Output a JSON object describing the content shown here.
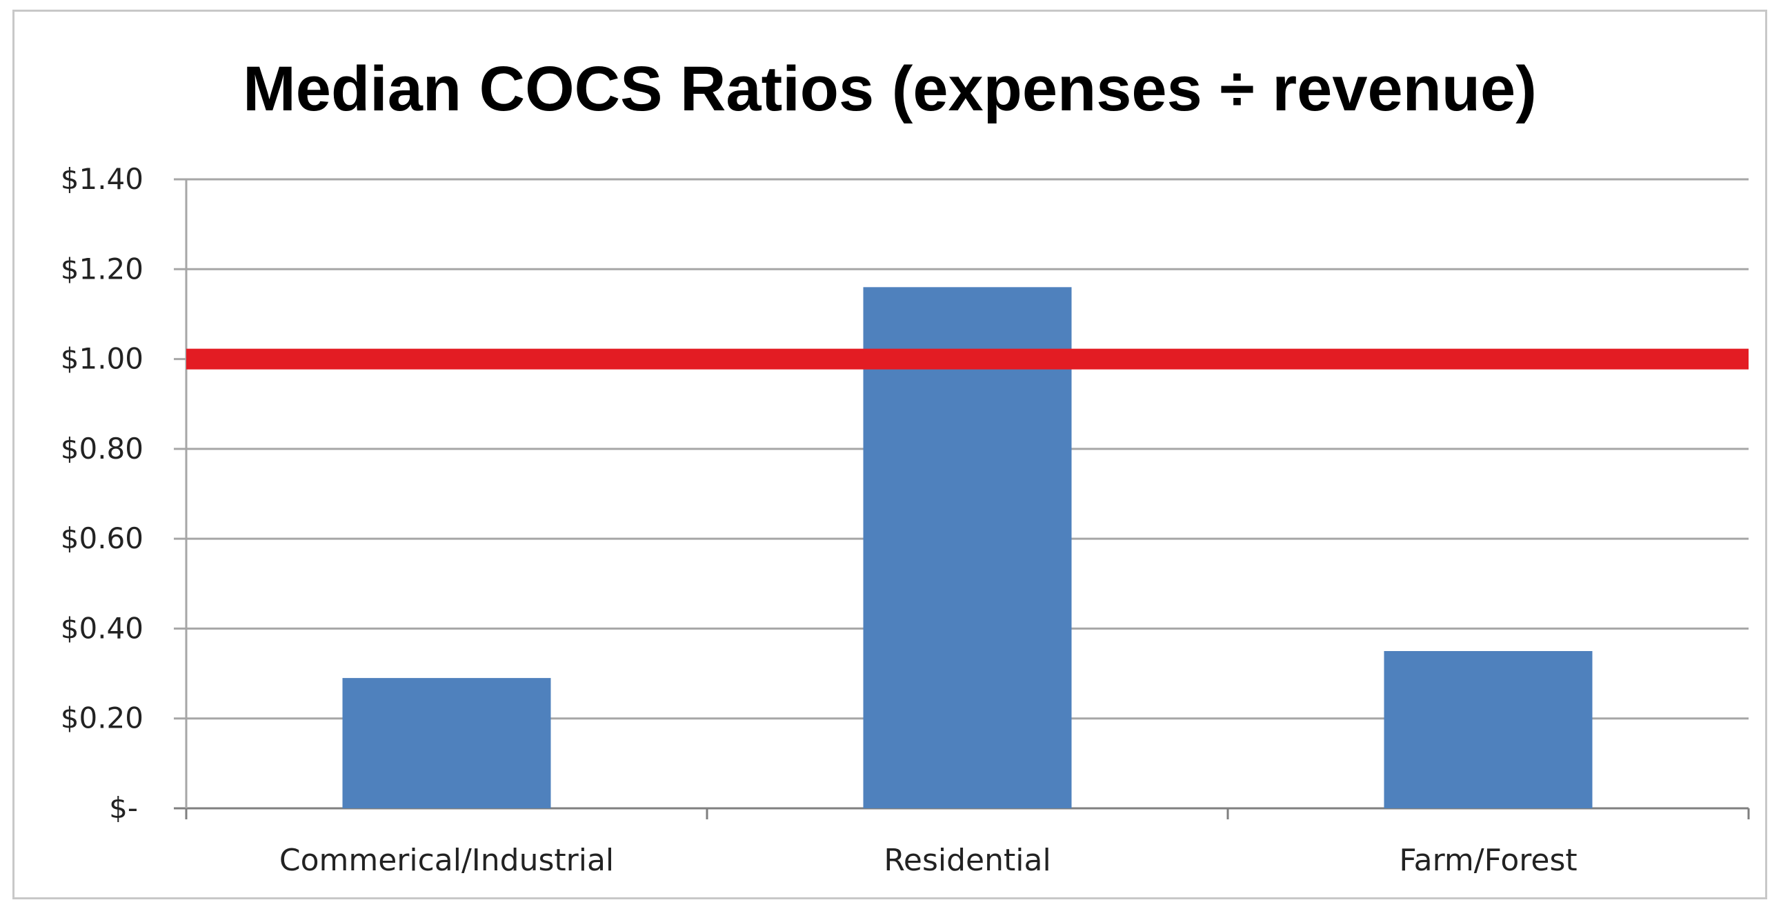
{
  "chart_data": {
    "type": "bar",
    "title": "Median COCS Ratios (expenses ÷ revenue)",
    "categories": [
      "Commerical/Industrial",
      "Residential",
      "Farm/Forest"
    ],
    "values": [
      0.29,
      1.16,
      0.35
    ],
    "ylim": [
      0,
      1.4
    ],
    "yticks": [
      0,
      0.2,
      0.4,
      0.6,
      0.8,
      1.0,
      1.2,
      1.4
    ],
    "ytick_labels": [
      "$-",
      "$0.20",
      "$0.40",
      "$0.60",
      "$0.80",
      "$1.00",
      "$1.20",
      "$1.40"
    ],
    "reference_line": {
      "value": 1.0,
      "color": "#e31c23"
    },
    "bar_color": "#4f81bd",
    "grid": true,
    "legend": "none"
  }
}
